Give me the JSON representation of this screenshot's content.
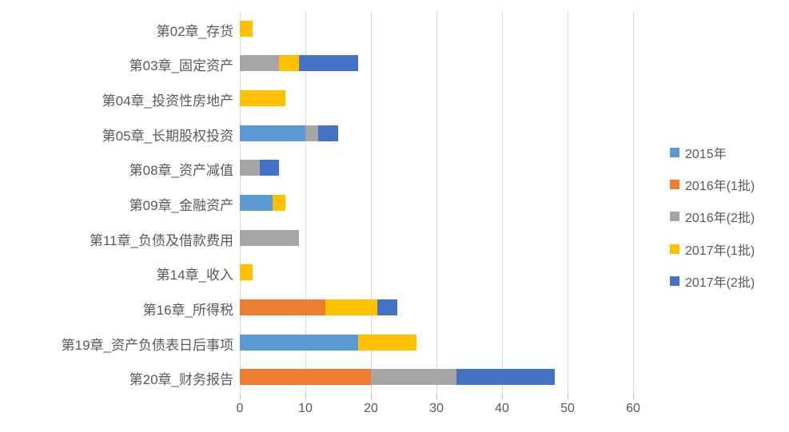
{
  "chart_data": {
    "type": "bar",
    "orientation": "horizontal_stacked",
    "title": "",
    "categories": [
      "第02章_存货",
      "第03章_固定资产",
      "第04章_投资性房地产",
      "第05章_长期股权投资",
      "第08章_资产减值",
      "第09章_金融资产",
      "第11章_负债及借款费用",
      "第14章_收入",
      "第16章_所得税",
      "第19章_资产负债表日后事项",
      "第20章_财务报告"
    ],
    "series": [
      {
        "name": "2015年",
        "color": "#5B9BD5",
        "values": [
          0,
          0,
          0,
          10,
          0,
          5,
          0,
          0,
          0,
          18,
          0
        ]
      },
      {
        "name": "2016年(1批)",
        "color": "#ED7D31",
        "values": [
          0,
          0,
          0,
          0,
          0,
          0,
          0,
          0,
          13,
          0,
          20
        ]
      },
      {
        "name": "2016年(2批)",
        "color": "#A5A5A5",
        "values": [
          0,
          6,
          0,
          2,
          3,
          0,
          9,
          0,
          0,
          0,
          13
        ]
      },
      {
        "name": "2017年(1批)",
        "color": "#FFC000",
        "values": [
          2,
          3,
          7,
          0,
          0,
          2,
          0,
          2,
          8,
          9,
          0
        ]
      },
      {
        "name": "2017年(2批)",
        "color": "#4472C4",
        "values": [
          0,
          9,
          0,
          3,
          3,
          0,
          0,
          0,
          3,
          0,
          15
        ]
      }
    ],
    "x_ticks": [
      0,
      10,
      20,
      30,
      40,
      50,
      60
    ],
    "xlim": [
      0,
      62.4
    ],
    "grid": true,
    "legend_position": "right",
    "colors": {
      "gridline": "#D9D9D9",
      "tick_mark": "#BFBFBF",
      "text": "#595959"
    }
  }
}
